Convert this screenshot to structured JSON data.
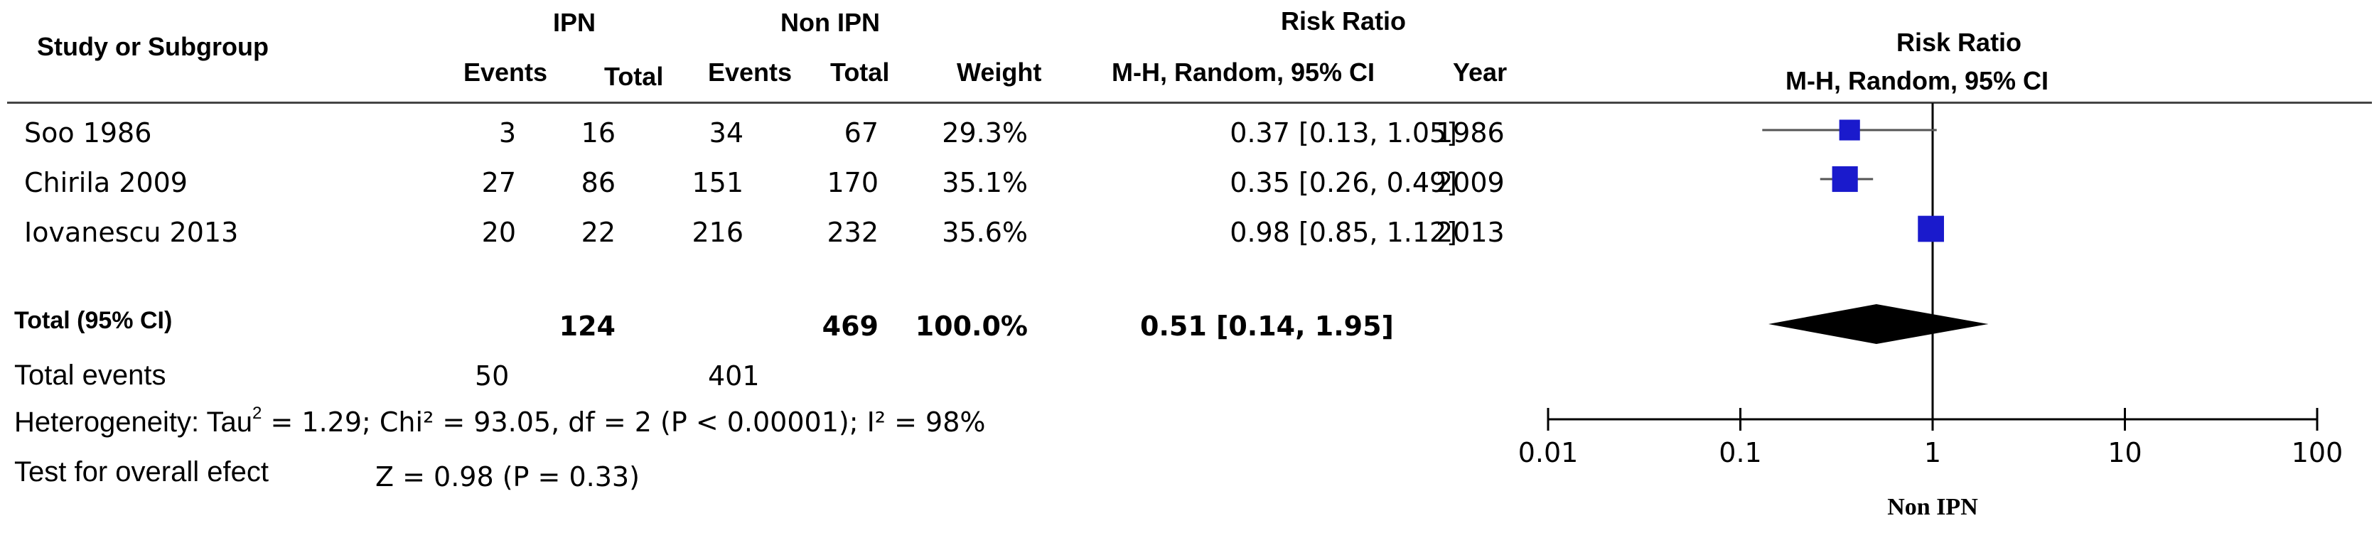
{
  "table": {
    "header": {
      "study": "Study or Subgroup",
      "ipn": "IPN",
      "non_ipn": "Non IPN",
      "rr_table": "Risk Ratio",
      "events1": "Events",
      "total1": "Total",
      "events2": "Events",
      "total2": "Total",
      "weight": "Weight",
      "method": "M-H, Random, 95% CI",
      "year": "Year",
      "rr_plot": "Risk Ratio",
      "method_plot": "M-H, Random, 95% CI"
    },
    "rows": [
      {
        "study": "Soo 1986",
        "e1": "3",
        "t1": "16",
        "e2": "34",
        "t2": "67",
        "weight": "29.3%",
        "ci": "0.37 [0.13, 1.05]",
        "year": "1986"
      },
      {
        "study": "Chirila 2009",
        "e1": "27",
        "t1": "86",
        "e2": "151",
        "t2": "170",
        "weight": "35.1%",
        "ci": "0.35 [0.26, 0.49]",
        "year": "2009"
      },
      {
        "study": "Iovanescu 2013",
        "e1": "20",
        "t1": "22",
        "e2": "216",
        "t2": "232",
        "weight": "35.6%",
        "ci": "0.98 [0.85, 1.12]",
        "year": "2013"
      }
    ],
    "total": {
      "label": "Total (95% CI)",
      "t1": "124",
      "t2": "469",
      "weight": "100.0%",
      "ci": "0.51 [0.14, 1.95]"
    },
    "events": {
      "label": "Total events",
      "e1": "50",
      "e2": "401"
    },
    "heterogeneity": {
      "label": "Heterogeneity: Tau",
      "sup": "2",
      "rest": " = 1.29; Chi² = 93.05, df = 2 (P < 0.00001); I² = 98%"
    },
    "overall": {
      "label": "Test for overall efect",
      "stat": "Z = 0.98 (P = 0.33)"
    }
  },
  "chart_data": {
    "type": "forest",
    "scale": "log",
    "xlim": [
      0.01,
      100
    ],
    "ticks": [
      0.01,
      0.1,
      1,
      10,
      100
    ],
    "tick_labels": [
      "0.01",
      "0.1",
      "1",
      "10",
      "100"
    ],
    "xlabel": "Non IPN",
    "reference": 1,
    "studies": [
      {
        "name": "Soo 1986",
        "estimate": 0.37,
        "lower": 0.13,
        "upper": 1.05,
        "weight": 29.3
      },
      {
        "name": "Chirila 2009",
        "estimate": 0.35,
        "lower": 0.26,
        "upper": 0.49,
        "weight": 35.1
      },
      {
        "name": "Iovanescu 2013",
        "estimate": 0.98,
        "lower": 0.85,
        "upper": 1.12,
        "weight": 35.6
      }
    ],
    "pooled": {
      "estimate": 0.51,
      "lower": 0.14,
      "upper": 1.95
    },
    "colors": {
      "marker": "#1a1acc",
      "diamond": "#000000",
      "lines": "#555555"
    }
  }
}
